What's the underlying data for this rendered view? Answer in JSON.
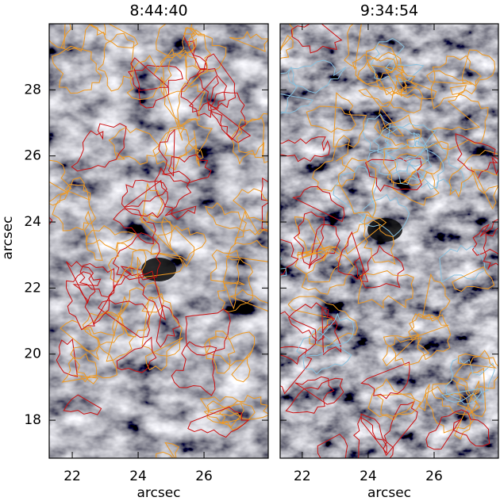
{
  "chart_data": [
    {
      "type": "image",
      "title": "8:44:40",
      "xlabel": "arcsec",
      "ylabel": "arcsec",
      "xlim": [
        21.3,
        27.95
      ],
      "ylim": [
        16.85,
        30.0
      ],
      "xticks": [
        22,
        24,
        26
      ],
      "yticks": [
        18,
        20,
        22,
        24,
        26,
        28
      ]
    },
    {
      "type": "image",
      "title": "9:34:54",
      "xlabel": "arcsec",
      "xlim": [
        21.33,
        27.95
      ],
      "ylim": [
        16.85,
        30.0
      ],
      "xticks": [
        22,
        24,
        26
      ]
    }
  ]
}
